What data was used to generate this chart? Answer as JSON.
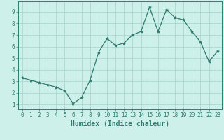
{
  "x": [
    0,
    1,
    2,
    3,
    4,
    5,
    6,
    7,
    8,
    9,
    10,
    11,
    12,
    13,
    14,
    15,
    16,
    17,
    18,
    19,
    20,
    21,
    22,
    23
  ],
  "y": [
    3.3,
    3.1,
    2.9,
    2.7,
    2.5,
    2.2,
    1.1,
    1.6,
    3.1,
    5.5,
    6.7,
    6.1,
    6.3,
    7.0,
    7.3,
    9.4,
    7.3,
    9.2,
    8.5,
    8.3,
    7.3,
    6.4,
    4.7,
    5.6
  ],
  "line_color": "#2e7b6e",
  "marker": "*",
  "markersize": 3,
  "linewidth": 0.9,
  "bg_color": "#cef0ea",
  "grid_color": "#aad8d0",
  "xlabel": "Humidex (Indice chaleur)",
  "xlim": [
    -0.5,
    23.5
  ],
  "ylim": [
    0.6,
    9.9
  ],
  "yticks": [
    1,
    2,
    3,
    4,
    5,
    6,
    7,
    8,
    9
  ],
  "xticks": [
    0,
    1,
    2,
    3,
    4,
    5,
    6,
    7,
    8,
    9,
    10,
    11,
    12,
    13,
    14,
    15,
    16,
    17,
    18,
    19,
    20,
    21,
    22,
    23
  ],
  "tick_fontsize": 5.5,
  "xlabel_fontsize": 7,
  "axis_color": "#2e7b6e"
}
